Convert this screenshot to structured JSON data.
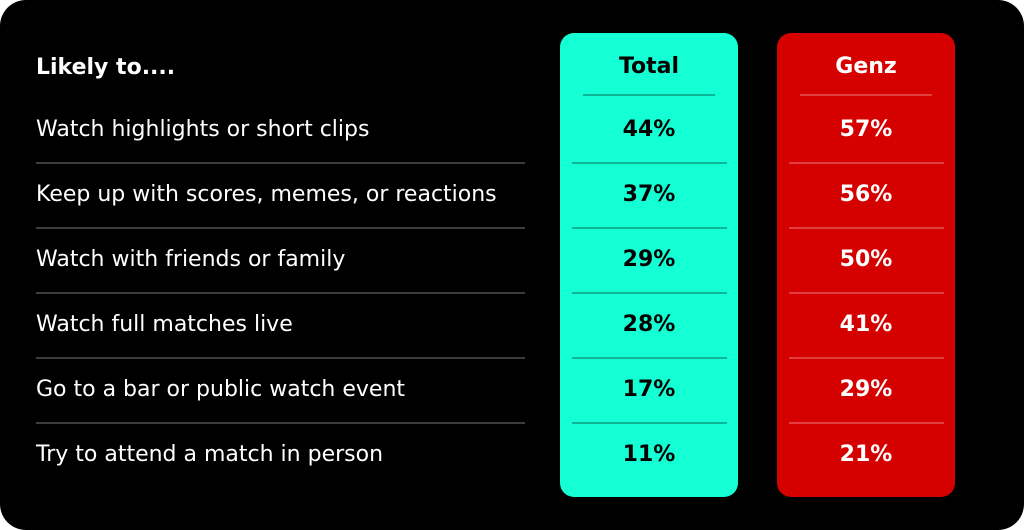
{
  "table": {
    "header": [
      "Likely to....",
      "Total",
      "Genz"
    ],
    "rows": [
      [
        "Watch highlights or short clips",
        "44%",
        "57%"
      ],
      [
        "Keep up with scores, memes, or reactions",
        "37%",
        "56%"
      ],
      [
        "Watch with friends or family",
        "29%",
        "50%"
      ],
      [
        "Watch full matches live",
        "28%",
        "41%"
      ],
      [
        "Go to a bar or public watch event",
        "17%",
        "29%"
      ],
      [
        "Try to attend a match in person",
        "11%",
        "21%"
      ]
    ]
  }
}
